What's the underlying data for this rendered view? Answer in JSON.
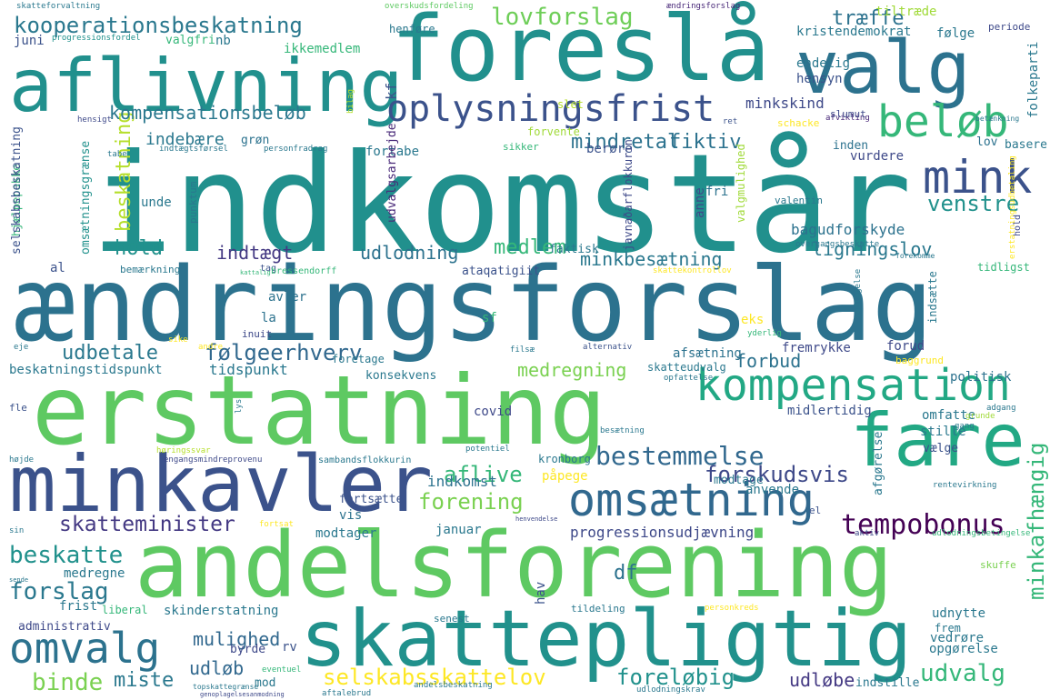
{
  "words": [
    {
      "text": "indkomstår",
      "color": "#21908d"
    },
    {
      "text": "ændringsforslag",
      "color": "#2c728e"
    },
    {
      "text": "erstatning",
      "color": "#5ec962"
    },
    {
      "text": "andelsforening",
      "color": "#5ec962"
    },
    {
      "text": "foreslå",
      "color": "#21908d"
    },
    {
      "text": "skattepligtig",
      "color": "#21918c"
    },
    {
      "text": "minkavler",
      "color": "#3b528b"
    },
    {
      "text": "aflivning",
      "color": "#21908d"
    },
    {
      "text": "valg",
      "color": "#2c728e"
    },
    {
      "text": "fare",
      "color": "#22a884"
    },
    {
      "text": "kompensation",
      "color": "#22a884"
    },
    {
      "text": "omsætning",
      "color": "#31688e"
    },
    {
      "text": "oplysningsfrist",
      "color": "#3b528b"
    },
    {
      "text": "mink",
      "color": "#3b528b"
    },
    {
      "text": "beløb",
      "color": "#35b779"
    },
    {
      "text": "kooperationsbeskatning",
      "color": "#2a788e"
    },
    {
      "text": "omvalg",
      "color": "#2c728e"
    },
    {
      "text": "venstre",
      "color": "#21918c"
    },
    {
      "text": "lovforslag",
      "color": "#6ece58"
    },
    {
      "text": "tempobonus",
      "color": "#440154"
    },
    {
      "text": "bestemmelse",
      "color": "#31688e"
    },
    {
      "text": "selskabsskattelov",
      "color": "#fde725"
    },
    {
      "text": "følgeerhverv",
      "color": "#31688e"
    },
    {
      "text": "skatteminister",
      "color": "#443983"
    },
    {
      "text": "forskudsvis",
      "color": "#3e4989"
    },
    {
      "text": "forening",
      "color": "#7ad151"
    },
    {
      "text": "beskatte",
      "color": "#21918c"
    },
    {
      "text": "forslag",
      "color": "#2a788e"
    },
    {
      "text": "binde",
      "color": "#7ad151"
    },
    {
      "text": "udvalg",
      "color": "#35b779"
    },
    {
      "text": "minkafhængig",
      "color": "#35b779"
    },
    {
      "text": "aflive",
      "color": "#35b779"
    },
    {
      "text": "beskatning",
      "color": "#b5de2b"
    },
    {
      "text": "mindretal",
      "color": "#2c728e"
    },
    {
      "text": "kompensationsbeløb",
      "color": "#2a788e"
    },
    {
      "text": "hold",
      "color": "#21918c"
    },
    {
      "text": "medlem",
      "color": "#35b779"
    },
    {
      "text": "udlodning",
      "color": "#2c728e"
    },
    {
      "text": "indtægt",
      "color": "#443983"
    },
    {
      "text": "udbetale",
      "color": "#2a788e"
    },
    {
      "text": "minkbesætning",
      "color": "#2a788e"
    },
    {
      "text": "ligningslov",
      "color": "#2a788e"
    },
    {
      "text": "fiktiv",
      "color": "#2c728e"
    },
    {
      "text": "træffe",
      "color": "#2c728e"
    },
    {
      "text": "foreløbig",
      "color": "#21918c"
    },
    {
      "text": "udløbe",
      "color": "#443983"
    },
    {
      "text": "miste",
      "color": "#2a788e"
    },
    {
      "text": "mulighed",
      "color": "#31688e"
    },
    {
      "text": "udløb",
      "color": "#31688e"
    },
    {
      "text": "medregning",
      "color": "#7ad151"
    },
    {
      "text": "forbud",
      "color": "#2c728e"
    },
    {
      "text": "indebære",
      "color": "#2a788e"
    },
    {
      "text": "minkskind",
      "color": "#3e4989"
    },
    {
      "text": "kristendemokrat",
      "color": "#2a788e"
    },
    {
      "text": "endelig",
      "color": "#2a788e"
    },
    {
      "text": "hensyn",
      "color": "#3b528b"
    },
    {
      "text": "følge",
      "color": "#2a788e"
    },
    {
      "text": "tiltræde",
      "color": "#a0da39"
    },
    {
      "text": "ikkemedlem",
      "color": "#35b779"
    },
    {
      "text": "valgfri",
      "color": "#35b779"
    },
    {
      "text": "nb",
      "color": "#2a788e"
    },
    {
      "text": "juni",
      "color": "#3b528b"
    },
    {
      "text": "progressionsfordel",
      "color": "#21918c"
    },
    {
      "text": "periode",
      "color": "#3e4989"
    },
    {
      "text": "henføre",
      "color": "#2a788e"
    },
    {
      "text": "overskudsfordeling",
      "color": "#5ec962"
    },
    {
      "text": "ændringsforslag",
      "color": "#482878"
    },
    {
      "text": "skatteforvaltning",
      "color": "#2a788e"
    },
    {
      "text": "folkeparti",
      "color": "#2a788e"
    },
    {
      "text": "slet",
      "color": "#b5de2b"
    },
    {
      "text": "afvikling",
      "color": "#482878"
    },
    {
      "text": "slumut",
      "color": "#3e4989"
    },
    {
      "text": "betænkning",
      "color": "#2a788e"
    },
    {
      "text": "basere",
      "color": "#2a788e"
    },
    {
      "text": "lov",
      "color": "#2c728e"
    },
    {
      "text": "inden",
      "color": "#2c728e"
    },
    {
      "text": "vurdere",
      "color": "#3e4989"
    },
    {
      "text": "berøre",
      "color": "#3b528b"
    },
    {
      "text": "fortabe",
      "color": "#2a788e"
    },
    {
      "text": "grøn",
      "color": "#2c728e"
    },
    {
      "text": "unde",
      "color": "#2a788e"
    },
    {
      "text": "al",
      "color": "#3b528b"
    },
    {
      "text": "bemærkning",
      "color": "#2a788e"
    },
    {
      "text": "tag",
      "color": "#3b528b"
    },
    {
      "text": "bressendorff",
      "color": "#35b779"
    },
    {
      "text": "kattalig",
      "color": "#35b779"
    },
    {
      "text": "hjælpepakke",
      "color": "#35b779"
    },
    {
      "text": "selskabsbeskatning",
      "color": "#3b528b"
    },
    {
      "text": "omsætningsgrænse",
      "color": "#21918c"
    },
    {
      "text": "skattekontrollov",
      "color": "#fde725"
    },
    {
      "text": "overgangsbeskatte",
      "color": "#2a788e"
    },
    {
      "text": "forekomme",
      "color": "#2a788e"
    },
    {
      "text": "tidligst",
      "color": "#35b779"
    },
    {
      "text": "indsætte",
      "color": "#2a788e"
    },
    {
      "text": "ataqatigiit",
      "color": "#3b528b"
    },
    {
      "text": "faktisk",
      "color": "#2a788e"
    },
    {
      "text": "javnaðarflokkurin",
      "color": "#3e4989"
    },
    {
      "text": "valentin",
      "color": "#2a788e"
    },
    {
      "text": "valgmulighed",
      "color": "#a0da39"
    },
    {
      "text": "fri",
      "color": "#2c728e"
    },
    {
      "text": "anne",
      "color": "#3e4989"
    },
    {
      "text": "bagudforskyde",
      "color": "#2c728e"
    },
    {
      "text": "udvalgsarbejde",
      "color": "#482878"
    },
    {
      "text": "punktum",
      "color": "#2a788e"
    },
    {
      "text": "sikker",
      "color": "#35b779"
    },
    {
      "text": "forvente",
      "color": "#a0da39"
    },
    {
      "text": "schacke",
      "color": "#fde725"
    },
    {
      "text": "kf",
      "color": "#3b528b"
    },
    {
      "text": "avler",
      "color": "#2c728e"
    },
    {
      "text": "la",
      "color": "#2c728e"
    },
    {
      "text": "inuit",
      "color": "#3e4989"
    },
    {
      "text": "sf",
      "color": "#35b779"
    },
    {
      "text": "eks",
      "color": "#fde725"
    },
    {
      "text": "yderlig",
      "color": "#35b779"
    },
    {
      "text": "vedtagelse",
      "color": "#2a788e"
    },
    {
      "text": "fremrykke",
      "color": "#3e4989"
    },
    {
      "text": "forud",
      "color": "#3e4989"
    },
    {
      "text": "baggrund",
      "color": "#fde725"
    },
    {
      "text": "politisk",
      "color": "#2c728e"
    },
    {
      "text": "omfatte",
      "color": "#2a788e"
    },
    {
      "text": "stille",
      "color": "#2a788e"
    },
    {
      "text": "midlertidig",
      "color": "#3b528b"
    },
    {
      "text": "afsætning",
      "color": "#2c728e"
    },
    {
      "text": "tidspunkt",
      "color": "#2a788e"
    },
    {
      "text": "beskatningstidspunkt",
      "color": "#2a788e"
    },
    {
      "text": "konsekvens",
      "color": "#2a788e"
    },
    {
      "text": "covid",
      "color": "#3e4989"
    },
    {
      "text": "kronborg",
      "color": "#2a788e"
    },
    {
      "text": "påpege",
      "color": "#fde725"
    },
    {
      "text": "indkomst",
      "color": "#2c728e"
    },
    {
      "text": "anvende",
      "color": "#2a788e"
    },
    {
      "text": "modtage",
      "color": "#2a788e"
    },
    {
      "text": "vælge",
      "color": "#3b528b"
    },
    {
      "text": "afgørelse",
      "color": "#2a788e"
    },
    {
      "text": "fortsætte",
      "color": "#3b528b"
    },
    {
      "text": "vis",
      "color": "#2c728e"
    },
    {
      "text": "modtager",
      "color": "#2a788e"
    },
    {
      "text": "januar",
      "color": "#2a788e"
    },
    {
      "text": "progressionsudjævning",
      "color": "#3e4989"
    },
    {
      "text": "df",
      "color": "#2c728e"
    },
    {
      "text": "hav",
      "color": "#3b528b"
    },
    {
      "text": "skinderstatning",
      "color": "#2a788e"
    },
    {
      "text": "liberal",
      "color": "#35b779"
    },
    {
      "text": "senest",
      "color": "#2a788e"
    },
    {
      "text": "tildeling",
      "color": "#2a788e"
    },
    {
      "text": "udnytte",
      "color": "#2a788e"
    },
    {
      "text": "frem",
      "color": "#2a788e"
    },
    {
      "text": "opgørelse",
      "color": "#2a788e"
    },
    {
      "text": "vedrøre",
      "color": "#2a788e"
    },
    {
      "text": "byrde",
      "color": "#3e4989"
    },
    {
      "text": "rv",
      "color": "#3b528b"
    },
    {
      "text": "mod",
      "color": "#2a788e"
    },
    {
      "text": "indstille",
      "color": "#2a788e"
    },
    {
      "text": "administrativ",
      "color": "#3e4989"
    },
    {
      "text": "medregne",
      "color": "#2a788e"
    },
    {
      "text": "frist",
      "color": "#2a788e"
    },
    {
      "text": "sambandsflokkurin",
      "color": "#2a788e"
    },
    {
      "text": "engangsmindreprovenu",
      "color": "#3e4989"
    },
    {
      "text": "høringssvar",
      "color": "#b5de2b"
    },
    {
      "text": "højde",
      "color": "#2a788e"
    },
    {
      "text": "potentiel",
      "color": "#2a788e"
    },
    {
      "text": "besætning",
      "color": "#2a788e"
    },
    {
      "text": "opfattelse",
      "color": "#2a788e"
    },
    {
      "text": "skatteudvalg",
      "color": "#2a788e"
    },
    {
      "text": "alternativ",
      "color": "#3b528b"
    },
    {
      "text": "filsæ",
      "color": "#2a788e"
    },
    {
      "text": "foretage",
      "color": "#2a788e"
    },
    {
      "text": "sike",
      "color": "#fde725"
    },
    {
      "text": "andre",
      "color": "#fde725"
    },
    {
      "text": "eje",
      "color": "#2a788e"
    },
    {
      "text": "fle",
      "color": "#3b528b"
    },
    {
      "text": "lys",
      "color": "#2a788e"
    },
    {
      "text": "gang",
      "color": "#2a788e"
    },
    {
      "text": "adgang",
      "color": "#2a788e"
    },
    {
      "text": "grunde",
      "color": "#a0da39"
    },
    {
      "text": "rentevirkning",
      "color": "#2a788e"
    },
    {
      "text": "aktiv",
      "color": "#3e4989"
    },
    {
      "text": "udlodningsbetingelse",
      "color": "#35b779"
    },
    {
      "text": "el",
      "color": "#3b528b"
    },
    {
      "text": "sin",
      "color": "#2a788e"
    },
    {
      "text": "fortsat",
      "color": "#fde725"
    },
    {
      "text": "henvendelse",
      "color": "#3e4989"
    },
    {
      "text": "skuffe",
      "color": "#7ad151"
    },
    {
      "text": "personkreds",
      "color": "#fde725"
    },
    {
      "text": "sende",
      "color": "#2a788e"
    },
    {
      "text": "topskattegrænse",
      "color": "#2a788e"
    },
    {
      "text": "genoplagelsesanmodning",
      "color": "#3e4989"
    },
    {
      "text": "eventuel",
      "color": "#35b779"
    },
    {
      "text": "aftalebrud",
      "color": "#2a788e"
    },
    {
      "text": "andelsbeskatning",
      "color": "#2a788e"
    },
    {
      "text": "udlodningskrav",
      "color": "#2a788e"
    },
    {
      "text": "erstatningsudbetaling",
      "color": "#fde725"
    },
    {
      "text": "tabe",
      "color": "#2a788e"
    },
    {
      "text": "indtægtsførsel",
      "color": "#2a788e"
    },
    {
      "text": "personfradrag",
      "color": "#2a788e"
    },
    {
      "text": "hensigt",
      "color": "#3e4989"
    },
    {
      "text": "bilag",
      "color": "#b5de2b"
    },
    {
      "text": "ret",
      "color": "#3b528b"
    },
    {
      "text": "hold",
      "color": "#3e4989"
    }
  ]
}
